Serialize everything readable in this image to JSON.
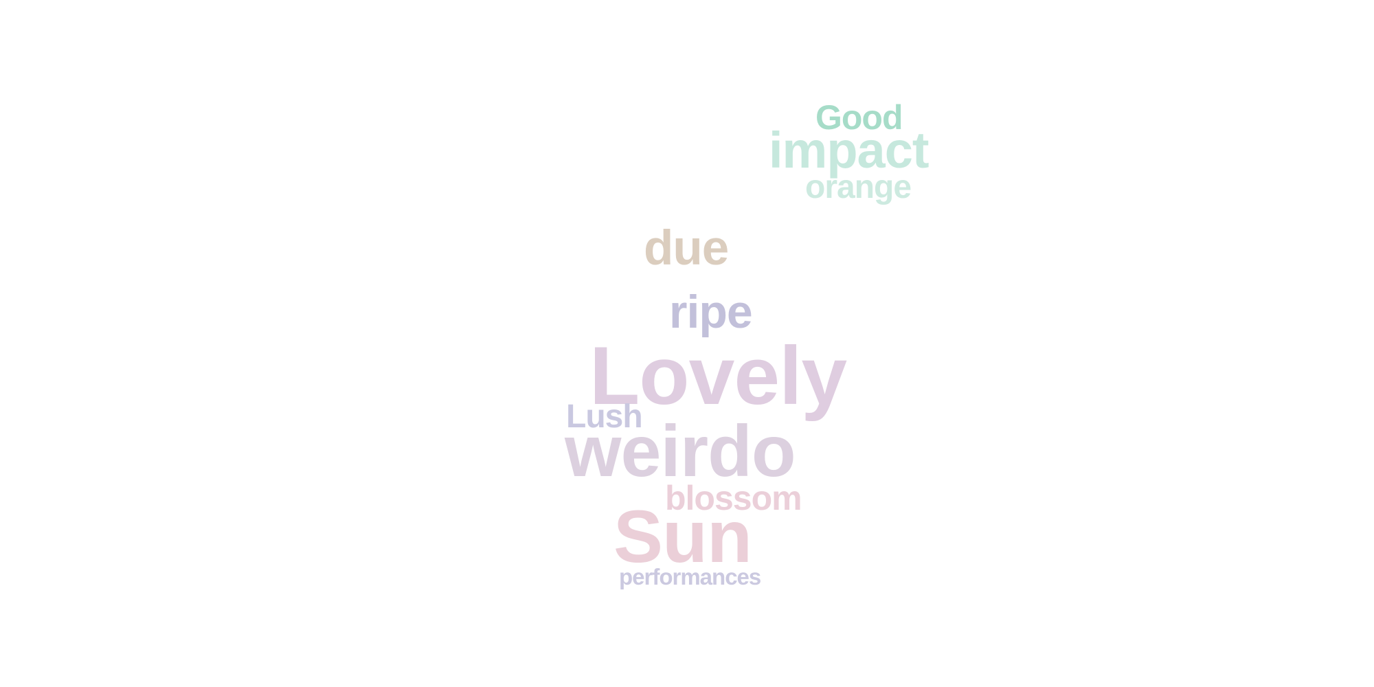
{
  "words": [
    {
      "id": "w-good",
      "text": "Good",
      "color": "#a6dcc8"
    },
    {
      "id": "w-impact",
      "text": "impact",
      "color": "#c6e8dd"
    },
    {
      "id": "w-orange",
      "text": "orange",
      "color": "#cdeae0"
    },
    {
      "id": "w-due",
      "text": "due",
      "color": "#dbcdbe"
    },
    {
      "id": "w-ripe",
      "text": "ripe",
      "color": "#c2c0da"
    },
    {
      "id": "w-lovely",
      "text": "Lovely",
      "color": "#dfcde0"
    },
    {
      "id": "w-lush",
      "text": "Lush",
      "color": "#c9c8e0"
    },
    {
      "id": "w-weirdo",
      "text": "weirdo",
      "color": "#dcd0df"
    },
    {
      "id": "w-blossom",
      "text": "blossom",
      "color": "#ebcfd9"
    },
    {
      "id": "w-sun",
      "text": "Sun",
      "color": "#ebcfd8"
    },
    {
      "id": "w-performances",
      "text": "performances",
      "color": "#cbc9e0"
    }
  ]
}
